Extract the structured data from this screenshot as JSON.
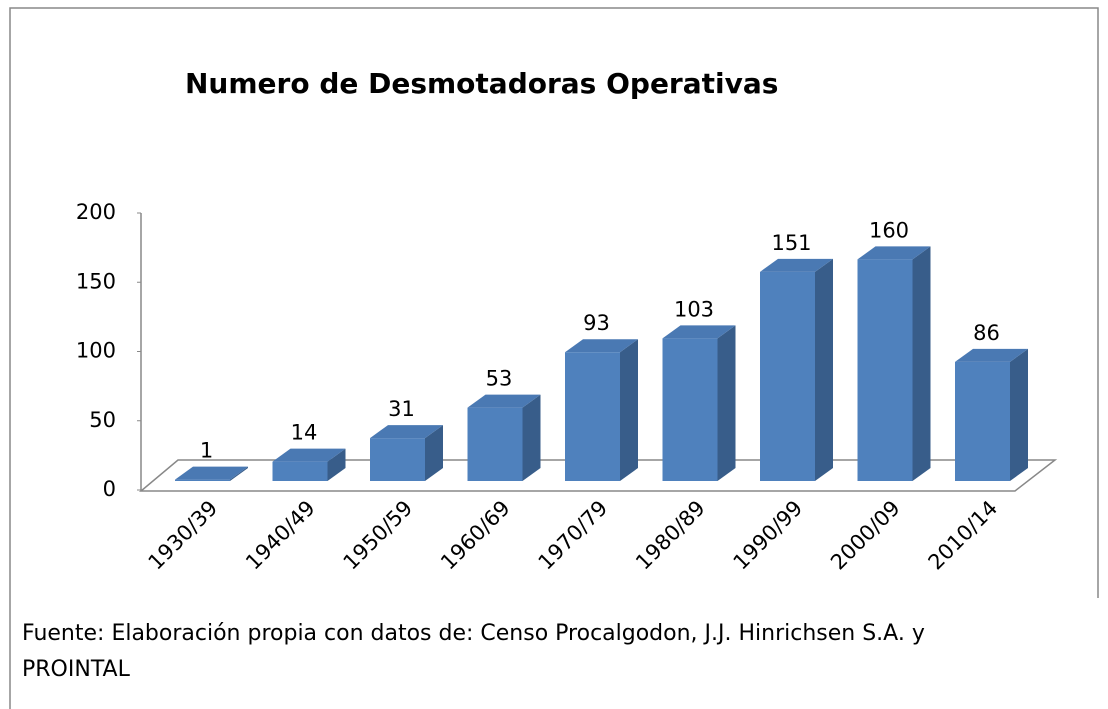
{
  "chart_data": {
    "type": "bar3d",
    "title": "Numero de Desmotadoras Operativas",
    "categories": [
      "1930/39",
      "1940/49",
      "1950/59",
      "1960/69",
      "1970/79",
      "1980/89",
      "1990/99",
      "2000/09",
      "2010/14"
    ],
    "values": [
      1,
      14,
      31,
      53,
      93,
      103,
      151,
      160,
      86
    ],
    "color": "#4f81bd",
    "ylim": [
      0,
      200
    ],
    "yticks": [
      0,
      50,
      100,
      150,
      200
    ],
    "grid": false
  },
  "note": "Fuente: Elaboración propia con datos de: Censo Procalgodon, J.J. Hinrichsen S.A. y PROINTAL"
}
